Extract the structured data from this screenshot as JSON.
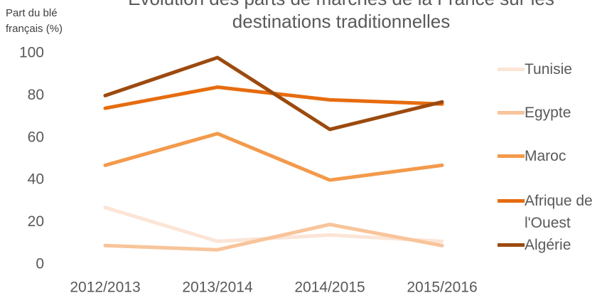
{
  "chart_data": {
    "type": "line",
    "title": "Évolution des parts de marchés de la France sur les destinations traditionnelles",
    "y_label": "Part du blé français (%)",
    "categories": [
      "2012/2013",
      "2013/2014",
      "2014/2015",
      "2015/2016"
    ],
    "series": [
      {
        "name": "Tunisie",
        "color": "#fbe5d6",
        "values": [
          27,
          11,
          14,
          11
        ]
      },
      {
        "name": "Egypte",
        "color": "#f8c49a",
        "values": [
          9,
          7,
          19,
          9
        ]
      },
      {
        "name": "Maroc",
        "color": "#f39a4c",
        "values": [
          47,
          62,
          40,
          47
        ]
      },
      {
        "name": "Afrique de l'Ouest",
        "color": "#e66c0f",
        "values": [
          74,
          84,
          78,
          76
        ]
      },
      {
        "name": "Algérie",
        "color": "#9c4a0e",
        "values": [
          80,
          98,
          64,
          77
        ]
      }
    ],
    "ylim": [
      0,
      100
    ],
    "yticks": [
      0,
      20,
      40,
      60,
      80,
      100
    ],
    "grid": false,
    "legend": "right"
  }
}
